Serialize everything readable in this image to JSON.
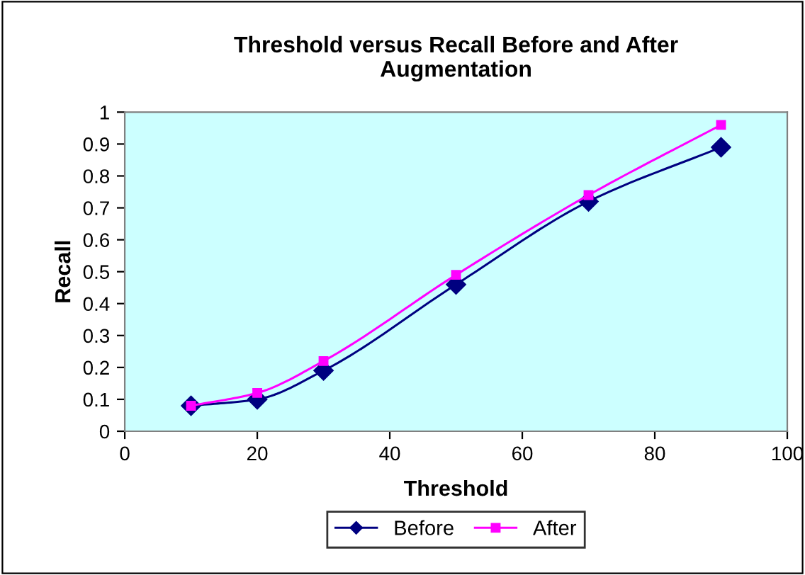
{
  "chart_data": {
    "type": "line",
    "title": "Threshold versus Recall Before and After\nAugmentation",
    "xlabel": "Threshold",
    "ylabel": "Recall",
    "x": [
      10,
      20,
      30,
      50,
      70,
      90
    ],
    "series": [
      {
        "name": "Before",
        "color": "#000080",
        "marker": "diamond",
        "values": [
          0.08,
          0.1,
          0.19,
          0.46,
          0.72,
          0.89
        ]
      },
      {
        "name": "After",
        "color": "#ff00ff",
        "marker": "square",
        "values": [
          0.08,
          0.12,
          0.22,
          0.49,
          0.74,
          0.96
        ]
      }
    ],
    "xlim": [
      0,
      100
    ],
    "xticks": [
      0,
      20,
      40,
      60,
      80,
      100
    ],
    "ylim": [
      0,
      1
    ],
    "yticks": [
      0,
      0.1,
      0.2,
      0.3,
      0.4,
      0.5,
      0.6,
      0.7,
      0.8,
      0.9,
      1
    ],
    "grid": false,
    "legend": "bottom",
    "line_style": "solid"
  }
}
